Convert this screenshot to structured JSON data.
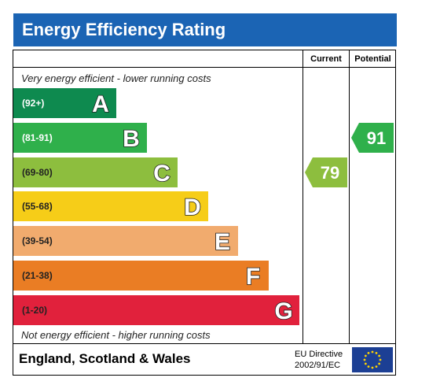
{
  "title": "Energy Efficiency Rating",
  "columns": {
    "current": "Current",
    "potential": "Potential"
  },
  "top_caption": "Very energy efficient - lower running costs",
  "bottom_caption": "Not energy efficient - higher running costs",
  "bands": [
    {
      "range": "(92+)",
      "letter": "A",
      "color": "#0e8a4f",
      "range_color": "#ffffff"
    },
    {
      "range": "(81-91)",
      "letter": "B",
      "color": "#2fb04b",
      "range_color": "#ffffff"
    },
    {
      "range": "(69-80)",
      "letter": "C",
      "color": "#8dbe3e",
      "range_color": "#222222"
    },
    {
      "range": "(55-68)",
      "letter": "D",
      "color": "#f6cd18",
      "range_color": "#222222"
    },
    {
      "range": "(39-54)",
      "letter": "E",
      "color": "#f1ab6e",
      "range_color": "#222222"
    },
    {
      "range": "(21-38)",
      "letter": "F",
      "color": "#ea7d24",
      "range_color": "#222222"
    },
    {
      "range": "(1-20)",
      "letter": "G",
      "color": "#e1213c",
      "range_color": "#222222"
    }
  ],
  "current": {
    "value": "79",
    "band": "C",
    "color": "#8dbe3e"
  },
  "potential": {
    "value": "91",
    "band": "B",
    "color": "#2fb04b"
  },
  "footer": {
    "country": "England, Scotland & Wales",
    "directive_line1": "EU Directive",
    "directive_line2": "2002/91/EC",
    "flag_icon": "eu-flag-icon"
  }
}
